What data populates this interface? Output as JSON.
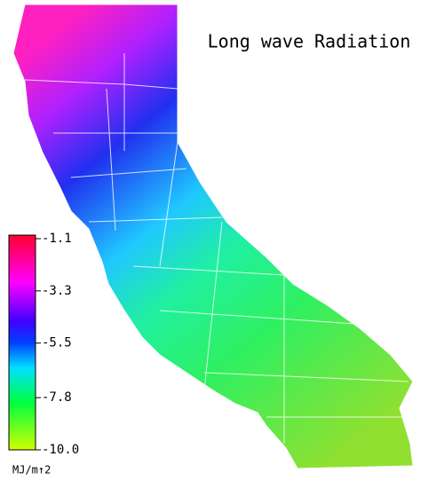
{
  "title": "Long wave Radiation",
  "colorbar": {
    "range": [
      -10,
      -1.1
    ],
    "ticks": [
      -1.1,
      -3.3,
      -5.5,
      -7.8,
      {
        "value": -10,
        "label": "-10.0"
      }
    ],
    "unit": "MJ/m↑2"
  }
}
